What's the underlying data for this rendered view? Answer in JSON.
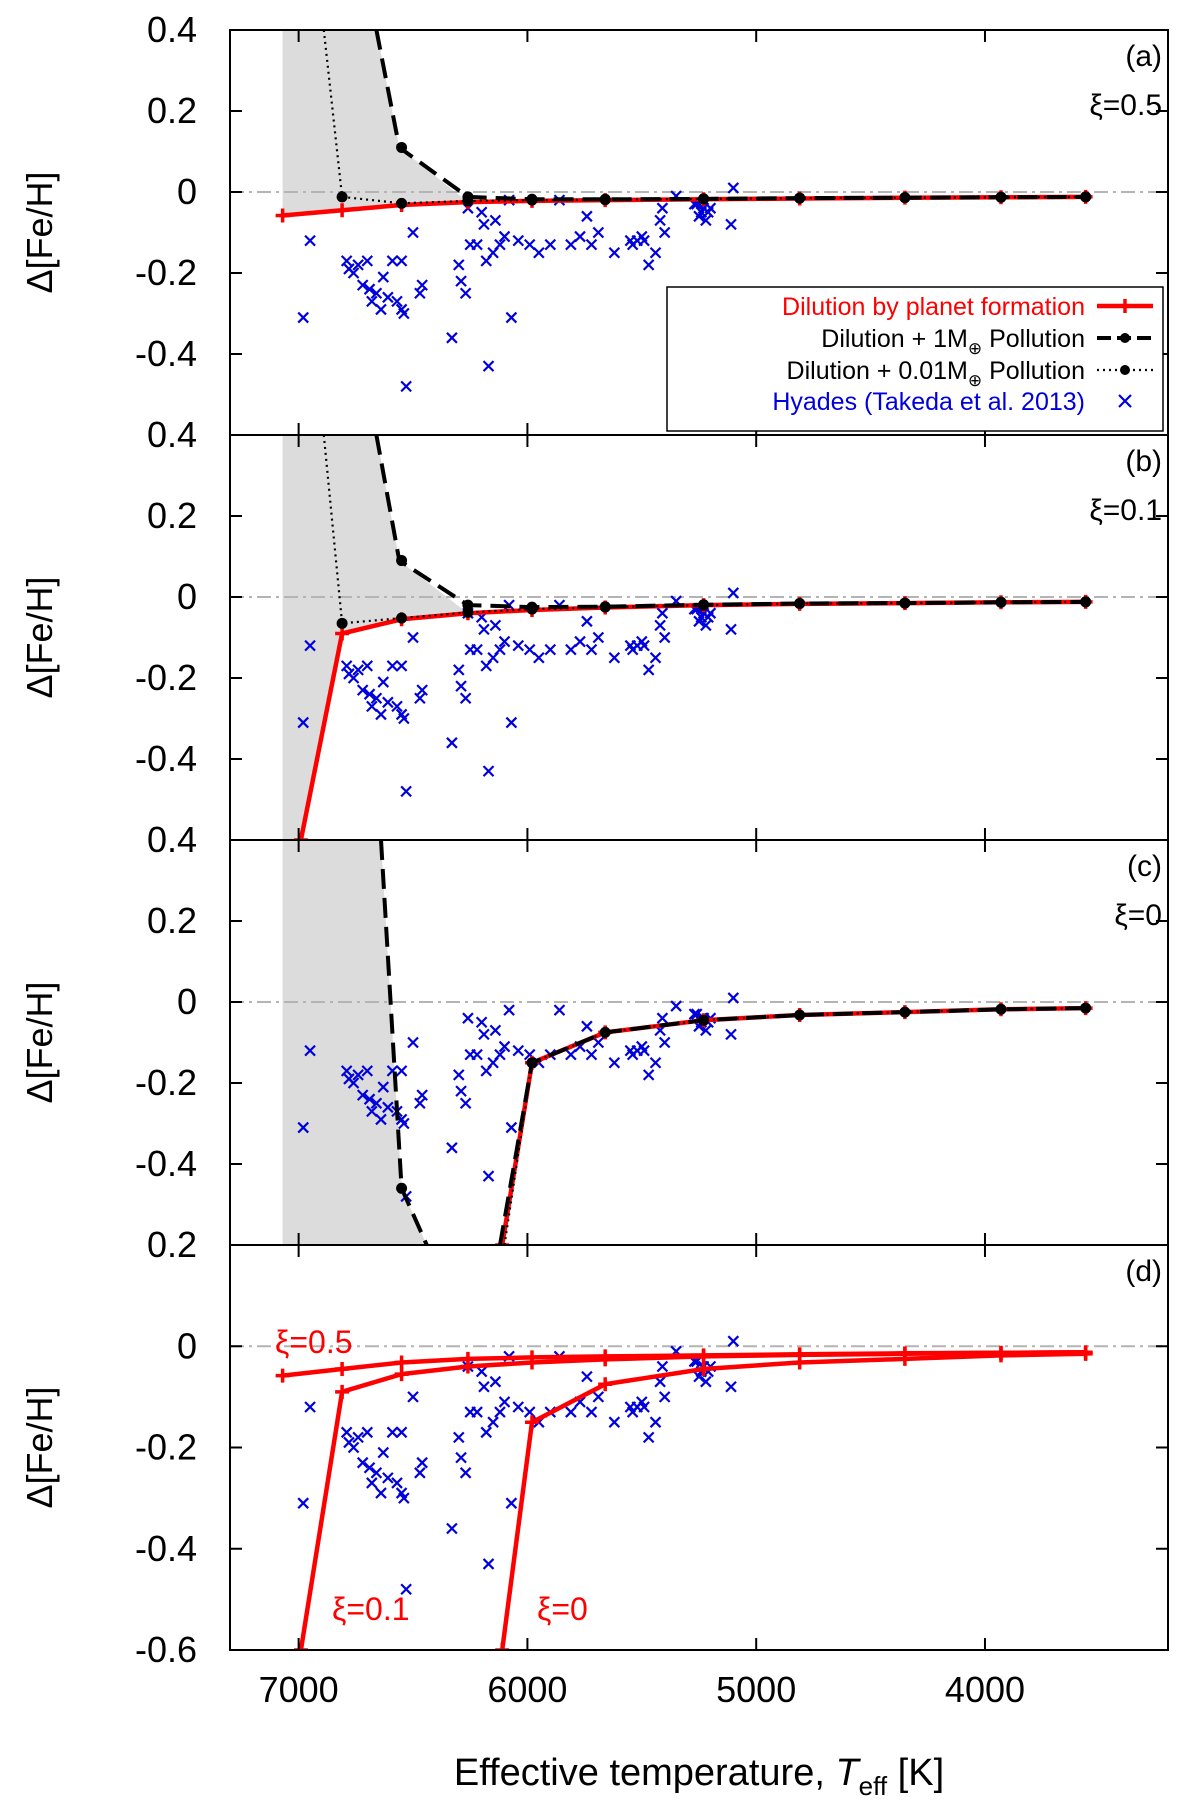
{
  "chart_data": {
    "type": "line",
    "xlabel_main": "Effective temperature, ",
    "xlabel_var": "T",
    "xlabel_sub": "eff",
    "xlabel_unit": " [K]",
    "ylabel": "Δ[Fe/H]",
    "xlim": [
      7300,
      3200
    ],
    "xticks": [
      7000,
      6000,
      5000,
      4000
    ],
    "xtick_labels": [
      "7000",
      "6000",
      "5000",
      "4000"
    ],
    "legend": {
      "placement": "inside panel (a), lower-right",
      "entries": [
        {
          "label": "Dilution by planet formation",
          "color": "#ff0000"
        },
        {
          "label": "Dilution + 1M",
          "sub": "⊕",
          "suffix": " Pollution",
          "color": "#000000"
        },
        {
          "label": "Dilution + 0.01M",
          "sub": "⊕",
          "suffix": " Pollution",
          "color": "#000000"
        },
        {
          "label": "Hyades (Takeda et al. 2013)",
          "color": "#0000dd"
        }
      ]
    },
    "hyades": [
      [
        6980,
        -0.31
      ],
      [
        6950,
        -0.12
      ],
      [
        6790,
        -0.17
      ],
      [
        6780,
        -0.19
      ],
      [
        6760,
        -0.2
      ],
      [
        6740,
        -0.18
      ],
      [
        6720,
        -0.23
      ],
      [
        6700,
        -0.17
      ],
      [
        6690,
        -0.24
      ],
      [
        6680,
        -0.27
      ],
      [
        6660,
        -0.25
      ],
      [
        6640,
        -0.29
      ],
      [
        6630,
        -0.21
      ],
      [
        6610,
        -0.26
      ],
      [
        6590,
        -0.17
      ],
      [
        6570,
        -0.27
      ],
      [
        6550,
        -0.29
      ],
      [
        6550,
        -0.17
      ],
      [
        6540,
        -0.3
      ],
      [
        6530,
        -0.48
      ],
      [
        6500,
        -0.1
      ],
      [
        6470,
        -0.25
      ],
      [
        6460,
        -0.23
      ],
      [
        6330,
        -0.36
      ],
      [
        6300,
        -0.18
      ],
      [
        6290,
        -0.22
      ],
      [
        6270,
        -0.25
      ],
      [
        6260,
        -0.04
      ],
      [
        6250,
        -0.13
      ],
      [
        6220,
        -0.13
      ],
      [
        6200,
        -0.05
      ],
      [
        6190,
        -0.08
      ],
      [
        6180,
        -0.17
      ],
      [
        6170,
        -0.43
      ],
      [
        6150,
        -0.15
      ],
      [
        6140,
        -0.07
      ],
      [
        6120,
        -0.13
      ],
      [
        6100,
        -0.11
      ],
      [
        6080,
        -0.02
      ],
      [
        6070,
        -0.31
      ],
      [
        6040,
        -0.12
      ],
      [
        5990,
        -0.13
      ],
      [
        5950,
        -0.15
      ],
      [
        5900,
        -0.13
      ],
      [
        5860,
        -0.02
      ],
      [
        5810,
        -0.13
      ],
      [
        5770,
        -0.11
      ],
      [
        5740,
        -0.06
      ],
      [
        5720,
        -0.13
      ],
      [
        5690,
        -0.1
      ],
      [
        5620,
        -0.15
      ],
      [
        5550,
        -0.12
      ],
      [
        5540,
        -0.13
      ],
      [
        5520,
        -0.12
      ],
      [
        5500,
        -0.11
      ],
      [
        5490,
        -0.12
      ],
      [
        5470,
        -0.18
      ],
      [
        5440,
        -0.15
      ],
      [
        5420,
        -0.07
      ],
      [
        5410,
        -0.04
      ],
      [
        5400,
        -0.1
      ],
      [
        5350,
        -0.01
      ],
      [
        5270,
        -0.03
      ],
      [
        5260,
        -0.03
      ],
      [
        5250,
        -0.06
      ],
      [
        5240,
        -0.05
      ],
      [
        5230,
        -0.04
      ],
      [
        5220,
        -0.07
      ],
      [
        5210,
        -0.05
      ],
      [
        5200,
        -0.04
      ],
      [
        5110,
        -0.08
      ],
      [
        5100,
        0.01
      ]
    ],
    "panels": [
      {
        "label": "(a)",
        "xi_label": "ξ=0.5",
        "ylim": [
          -0.6,
          0.4
        ],
        "yticks": [
          0.4,
          0.2,
          0,
          -0.2,
          -0.4
        ],
        "ytick_labels": [
          "0.4",
          "0.2",
          "0",
          "-0.2",
          "-0.4"
        ],
        "shade": [
          [
            7070,
            0.4
          ],
          [
            7070,
            -0.058
          ],
          [
            6810,
            -0.045
          ],
          [
            6550,
            -0.032
          ],
          [
            6260,
            -0.025
          ],
          [
            6560,
            0.11
          ],
          [
            6660,
            0.4
          ]
        ],
        "series": {
          "dilution": [
            [
              7070,
              -0.058
            ],
            [
              6810,
              -0.045
            ],
            [
              6550,
              -0.032
            ],
            [
              6260,
              -0.025
            ],
            [
              5980,
              -0.022
            ],
            [
              5660,
              -0.02
            ],
            [
              5230,
              -0.018
            ],
            [
              4810,
              -0.016
            ],
            [
              4350,
              -0.014
            ],
            [
              3930,
              -0.013
            ],
            [
              3560,
              -0.012
            ]
          ],
          "pollution_1Me": [
            [
              6660,
              0.4
            ],
            [
              6560,
              0.11
            ],
            [
              6260,
              -0.012
            ],
            [
              5980,
              -0.018
            ],
            [
              5660,
              -0.018
            ],
            [
              5230,
              -0.017
            ],
            [
              4810,
              -0.015
            ],
            [
              4350,
              -0.014
            ],
            [
              3930,
              -0.013
            ],
            [
              3560,
              -0.012
            ]
          ],
          "pollution_1Me_dots": [
            [
              6550,
              0.11
            ],
            [
              6260,
              -0.012
            ],
            [
              5980,
              -0.018
            ],
            [
              5660,
              -0.018
            ],
            [
              5230,
              -0.017
            ],
            [
              4810,
              -0.015
            ],
            [
              4350,
              -0.014
            ],
            [
              3930,
              -0.013
            ],
            [
              3560,
              -0.012
            ]
          ],
          "pollution_001Me": [
            [
              6890,
              0.4
            ],
            [
              6810,
              -0.012
            ],
            [
              6550,
              -0.028
            ],
            [
              6260,
              -0.022
            ],
            [
              5980,
              -0.02
            ],
            [
              5660,
              -0.019
            ],
            [
              5230,
              -0.017
            ],
            [
              4810,
              -0.015
            ],
            [
              4350,
              -0.014
            ],
            [
              3930,
              -0.013
            ],
            [
              3560,
              -0.012
            ]
          ],
          "pollution_001Me_dots": [
            [
              6810,
              -0.012
            ],
            [
              6550,
              -0.028
            ],
            [
              6260,
              -0.022
            ],
            [
              5980,
              -0.02
            ],
            [
              5660,
              -0.019
            ],
            [
              5230,
              -0.017
            ],
            [
              4810,
              -0.015
            ],
            [
              4350,
              -0.014
            ],
            [
              3930,
              -0.013
            ],
            [
              3560,
              -0.012
            ]
          ]
        }
      },
      {
        "label": "(b)",
        "xi_label": "ξ=0.1",
        "ylim": [
          -0.6,
          0.4
        ],
        "yticks": [
          0.4,
          0.2,
          0,
          -0.2,
          -0.4
        ],
        "ytick_labels": [
          "0.4",
          "0.2",
          "0",
          "-0.2",
          "-0.4"
        ],
        "shade": [
          [
            7070,
            0.4
          ],
          [
            7070,
            -0.6
          ],
          [
            6990,
            -0.6
          ],
          [
            6810,
            -0.09
          ],
          [
            6550,
            -0.055
          ],
          [
            6260,
            -0.04
          ],
          [
            6560,
            0.09
          ],
          [
            6660,
            0.4
          ]
        ],
        "series": {
          "dilution": [
            [
              6990,
              -0.6
            ],
            [
              6810,
              -0.09
            ],
            [
              6550,
              -0.055
            ],
            [
              6260,
              -0.04
            ],
            [
              5980,
              -0.032
            ],
            [
              5660,
              -0.026
            ],
            [
              5230,
              -0.02
            ],
            [
              4810,
              -0.017
            ],
            [
              4350,
              -0.015
            ],
            [
              3930,
              -0.013
            ],
            [
              3560,
              -0.012
            ]
          ],
          "pollution_1Me": [
            [
              6660,
              0.4
            ],
            [
              6560,
              0.09
            ],
            [
              6260,
              -0.02
            ],
            [
              5980,
              -0.025
            ],
            [
              5660,
              -0.024
            ],
            [
              5230,
              -0.019
            ],
            [
              4810,
              -0.016
            ],
            [
              4350,
              -0.015
            ],
            [
              3930,
              -0.013
            ],
            [
              3560,
              -0.012
            ]
          ],
          "pollution_1Me_dots": [
            [
              6550,
              0.09
            ],
            [
              6260,
              -0.02
            ],
            [
              5980,
              -0.025
            ],
            [
              5660,
              -0.024
            ],
            [
              5230,
              -0.019
            ],
            [
              4810,
              -0.016
            ],
            [
              4350,
              -0.015
            ],
            [
              3930,
              -0.013
            ],
            [
              3560,
              -0.012
            ]
          ],
          "pollution_001Me": [
            [
              6890,
              0.4
            ],
            [
              6810,
              -0.065
            ],
            [
              6550,
              -0.052
            ],
            [
              6260,
              -0.038
            ],
            [
              5980,
              -0.03
            ],
            [
              5660,
              -0.025
            ],
            [
              5230,
              -0.02
            ],
            [
              4810,
              -0.016
            ],
            [
              4350,
              -0.015
            ],
            [
              3930,
              -0.013
            ],
            [
              3560,
              -0.012
            ]
          ],
          "pollution_001Me_dots": [
            [
              6810,
              -0.065
            ],
            [
              6550,
              -0.052
            ],
            [
              6260,
              -0.038
            ],
            [
              5980,
              -0.03
            ],
            [
              5660,
              -0.025
            ],
            [
              5230,
              -0.02
            ],
            [
              4810,
              -0.016
            ],
            [
              4350,
              -0.015
            ],
            [
              3930,
              -0.013
            ],
            [
              3560,
              -0.012
            ]
          ]
        }
      },
      {
        "label": "(c)",
        "xi_label": "ξ=0",
        "ylim": [
          -0.6,
          0.4
        ],
        "yticks": [
          0.4,
          0.2,
          0,
          -0.2,
          -0.4
        ],
        "ytick_labels": [
          "0.4",
          "0.2",
          "0",
          "-0.2",
          "-0.4"
        ],
        "shade": [
          [
            7070,
            0.4
          ],
          [
            7070,
            -0.6
          ],
          [
            6440,
            -0.6
          ],
          [
            6550,
            -0.46
          ],
          [
            6640,
            0.4
          ]
        ],
        "series": {
          "dilution": [
            [
              6110,
              -0.6
            ],
            [
              5980,
              -0.15
            ],
            [
              5660,
              -0.075
            ],
            [
              5230,
              -0.045
            ],
            [
              4810,
              -0.032
            ],
            [
              4350,
              -0.025
            ],
            [
              3930,
              -0.018
            ],
            [
              3560,
              -0.015
            ]
          ],
          "pollution_1Me": [
            [
              6640,
              0.4
            ],
            [
              6550,
              -0.46
            ],
            [
              6440,
              -0.6
            ]
          ],
          "pollution_1Me_dots": [
            [
              6550,
              -0.46
            ]
          ],
          "pollution_1Me_right": [
            [
              6120,
              -0.6
            ],
            [
              5980,
              -0.15
            ],
            [
              5660,
              -0.075
            ],
            [
              5230,
              -0.045
            ],
            [
              4810,
              -0.032
            ],
            [
              4350,
              -0.025
            ],
            [
              3930,
              -0.018
            ],
            [
              3560,
              -0.015
            ]
          ],
          "pollution_001Me": [
            [
              6100,
              -0.6
            ],
            [
              5980,
              -0.15
            ],
            [
              5660,
              -0.075
            ],
            [
              5230,
              -0.045
            ],
            [
              4810,
              -0.032
            ],
            [
              4350,
              -0.025
            ],
            [
              3930,
              -0.018
            ],
            [
              3560,
              -0.015
            ]
          ],
          "pollution_001Me_dots": [
            [
              5980,
              -0.15
            ],
            [
              5660,
              -0.075
            ],
            [
              5230,
              -0.045
            ],
            [
              4810,
              -0.032
            ],
            [
              4350,
              -0.025
            ],
            [
              3930,
              -0.018
            ],
            [
              3560,
              -0.015
            ]
          ]
        }
      },
      {
        "label": "(d)",
        "ylim": [
          -0.6,
          0.2
        ],
        "yticks": [
          0.2,
          0,
          -0.2,
          -0.4,
          -0.6
        ],
        "ytick_labels": [
          "0.2",
          "0",
          "-0.2",
          "-0.4",
          "-0.6"
        ],
        "annotations": [
          "ξ=0.5",
          "ξ=0.1",
          "ξ=0"
        ],
        "series": {
          "dilution_xi05": [
            [
              7070,
              -0.058
            ],
            [
              6810,
              -0.045
            ],
            [
              6550,
              -0.032
            ],
            [
              6260,
              -0.025
            ],
            [
              5980,
              -0.022
            ],
            [
              5660,
              -0.02
            ],
            [
              5230,
              -0.018
            ],
            [
              4810,
              -0.016
            ],
            [
              4350,
              -0.014
            ],
            [
              3930,
              -0.013
            ],
            [
              3560,
              -0.012
            ]
          ],
          "dilution_xi01": [
            [
              6990,
              -0.6
            ],
            [
              6810,
              -0.09
            ],
            [
              6550,
              -0.055
            ],
            [
              6260,
              -0.04
            ],
            [
              5980,
              -0.032
            ],
            [
              5660,
              -0.026
            ],
            [
              5230,
              -0.02
            ],
            [
              4810,
              -0.017
            ],
            [
              4350,
              -0.015
            ],
            [
              3930,
              -0.013
            ],
            [
              3560,
              -0.012
            ]
          ],
          "dilution_xi0": [
            [
              6110,
              -0.6
            ],
            [
              5980,
              -0.15
            ],
            [
              5660,
              -0.075
            ],
            [
              5230,
              -0.045
            ],
            [
              4810,
              -0.032
            ],
            [
              4350,
              -0.025
            ],
            [
              3930,
              -0.018
            ],
            [
              3560,
              -0.015
            ]
          ]
        }
      }
    ]
  }
}
